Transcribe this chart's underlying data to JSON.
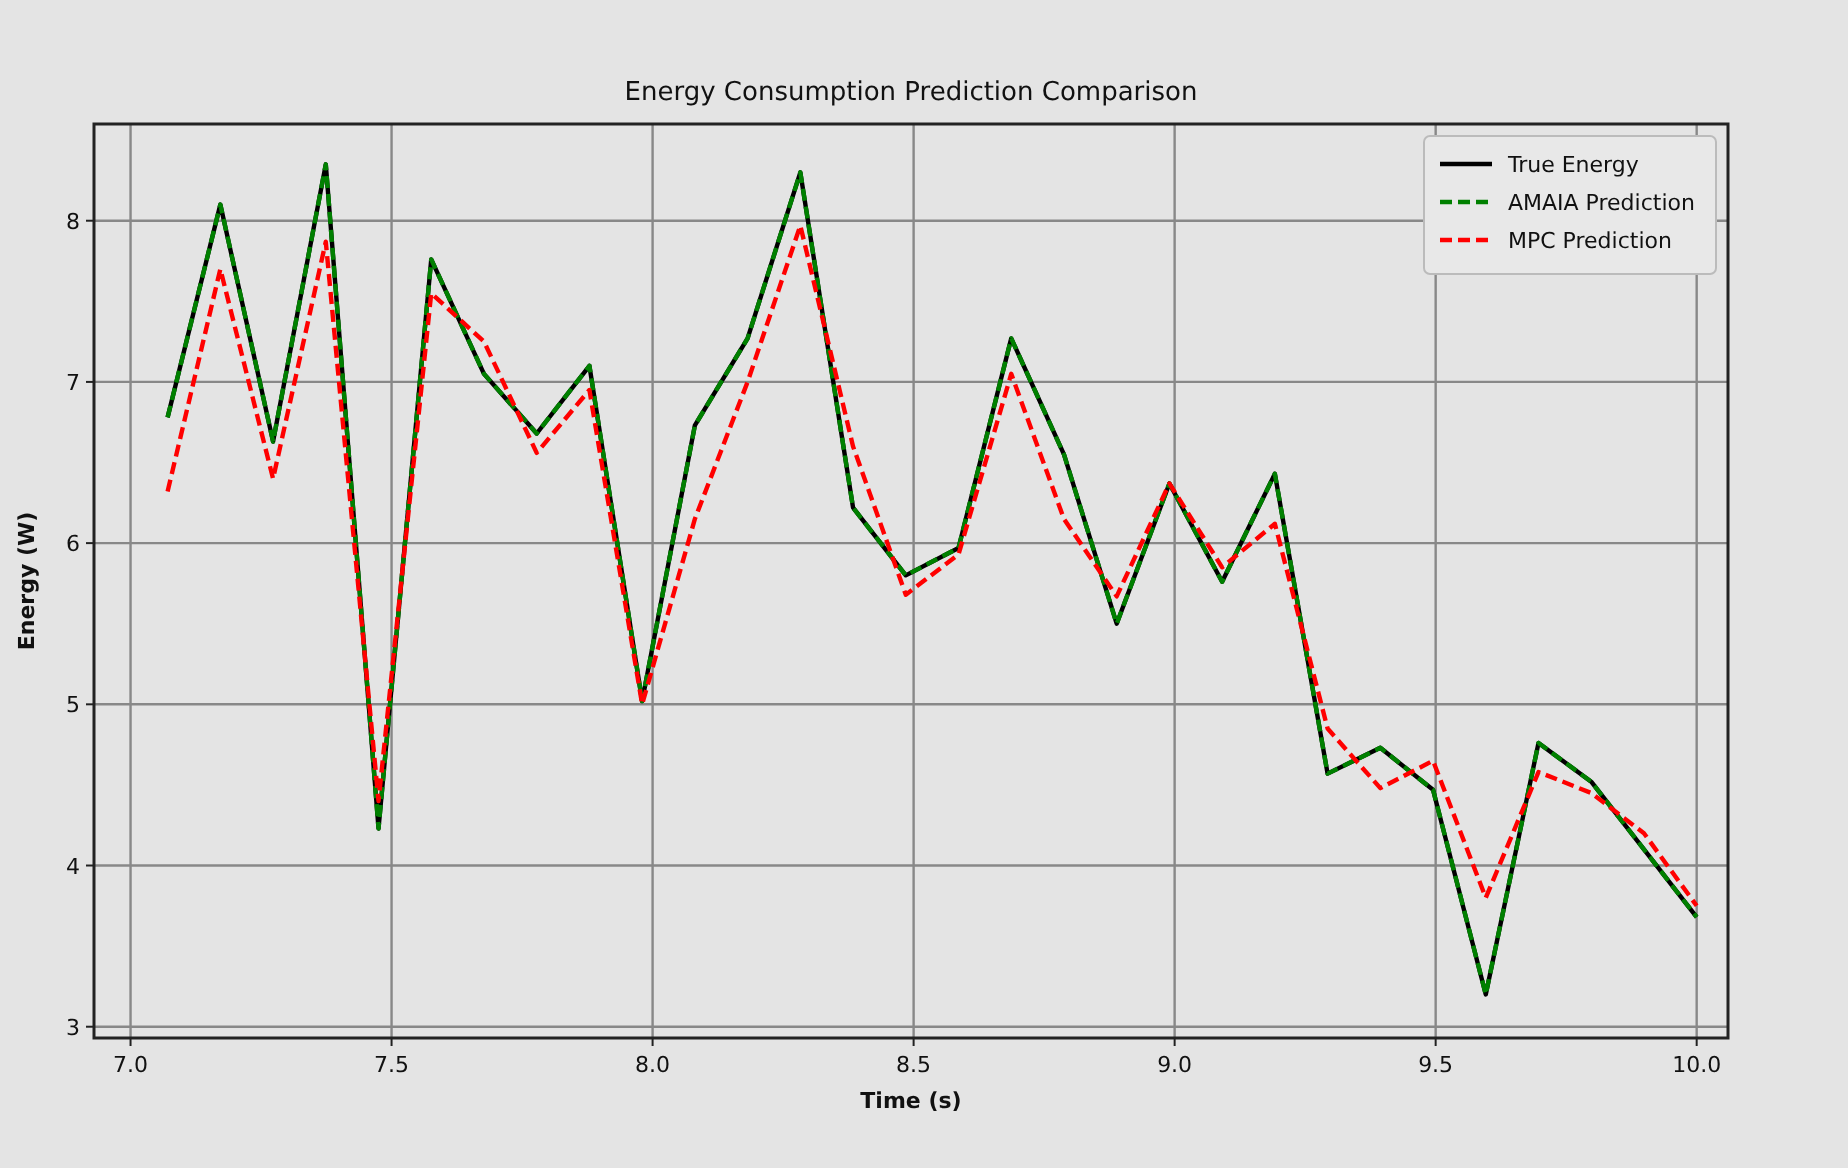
{
  "chart_data": {
    "type": "line",
    "title": "Energy Consumption Prediction Comparison",
    "xlabel": "Time (s)",
    "ylabel": "Energy (W)",
    "x": [
      7.071,
      7.172,
      7.273,
      7.374,
      7.475,
      7.576,
      7.677,
      7.778,
      7.879,
      7.98,
      8.081,
      8.182,
      8.283,
      8.384,
      8.485,
      8.586,
      8.687,
      8.788,
      8.889,
      8.99,
      9.091,
      9.192,
      9.293,
      9.394,
      9.495,
      9.596,
      9.697,
      9.798,
      9.899,
      10.0
    ],
    "series": [
      {
        "name": "True Energy",
        "color": "#000000",
        "line_style": "solid",
        "values": [
          6.78,
          8.1,
          6.63,
          8.35,
          4.23,
          7.76,
          7.05,
          6.68,
          7.1,
          5.02,
          6.73,
          7.27,
          8.3,
          6.22,
          5.8,
          5.97,
          7.27,
          6.55,
          5.5,
          6.37,
          5.76,
          6.43,
          4.57,
          4.73,
          4.47,
          3.2,
          4.76,
          4.52,
          4.1,
          3.68
        ]
      },
      {
        "name": "AMAIA Prediction",
        "color": "#008000",
        "line_style": "dashed",
        "values": [
          6.78,
          8.1,
          6.63,
          8.35,
          4.23,
          7.76,
          7.05,
          6.68,
          7.1,
          5.02,
          6.73,
          7.27,
          8.3,
          6.22,
          5.8,
          5.97,
          7.27,
          6.55,
          5.5,
          6.37,
          5.76,
          6.43,
          4.57,
          4.73,
          4.47,
          3.2,
          4.76,
          4.52,
          4.1,
          3.68
        ]
      },
      {
        "name": "MPC Prediction",
        "color": "#ff0000",
        "line_style": "dashed",
        "values": [
          6.32,
          7.7,
          6.4,
          7.87,
          4.4,
          7.55,
          7.25,
          6.56,
          6.95,
          5.0,
          6.15,
          7.0,
          7.97,
          6.6,
          5.68,
          5.93,
          7.05,
          6.15,
          5.67,
          6.37,
          5.85,
          6.12,
          4.85,
          4.48,
          4.65,
          3.8,
          4.58,
          4.45,
          4.2,
          3.75
        ]
      }
    ],
    "xlim": [
      6.93,
      10.06
    ],
    "ylim": [
      2.93,
      8.6
    ],
    "xticks": [
      {
        "value": 7,
        "label": "7.0"
      },
      {
        "value": 7.5,
        "label": "7.5"
      },
      {
        "value": 8,
        "label": "8.0"
      },
      {
        "value": 8.5,
        "label": "8.5"
      },
      {
        "value": 9,
        "label": "9.0"
      },
      {
        "value": 9.5,
        "label": "9.5"
      },
      {
        "value": 10,
        "label": "10.0"
      }
    ],
    "yticks": [
      3,
      4,
      5,
      6,
      7,
      8
    ],
    "grid": true,
    "legend": "top right",
    "marker": "none"
  }
}
